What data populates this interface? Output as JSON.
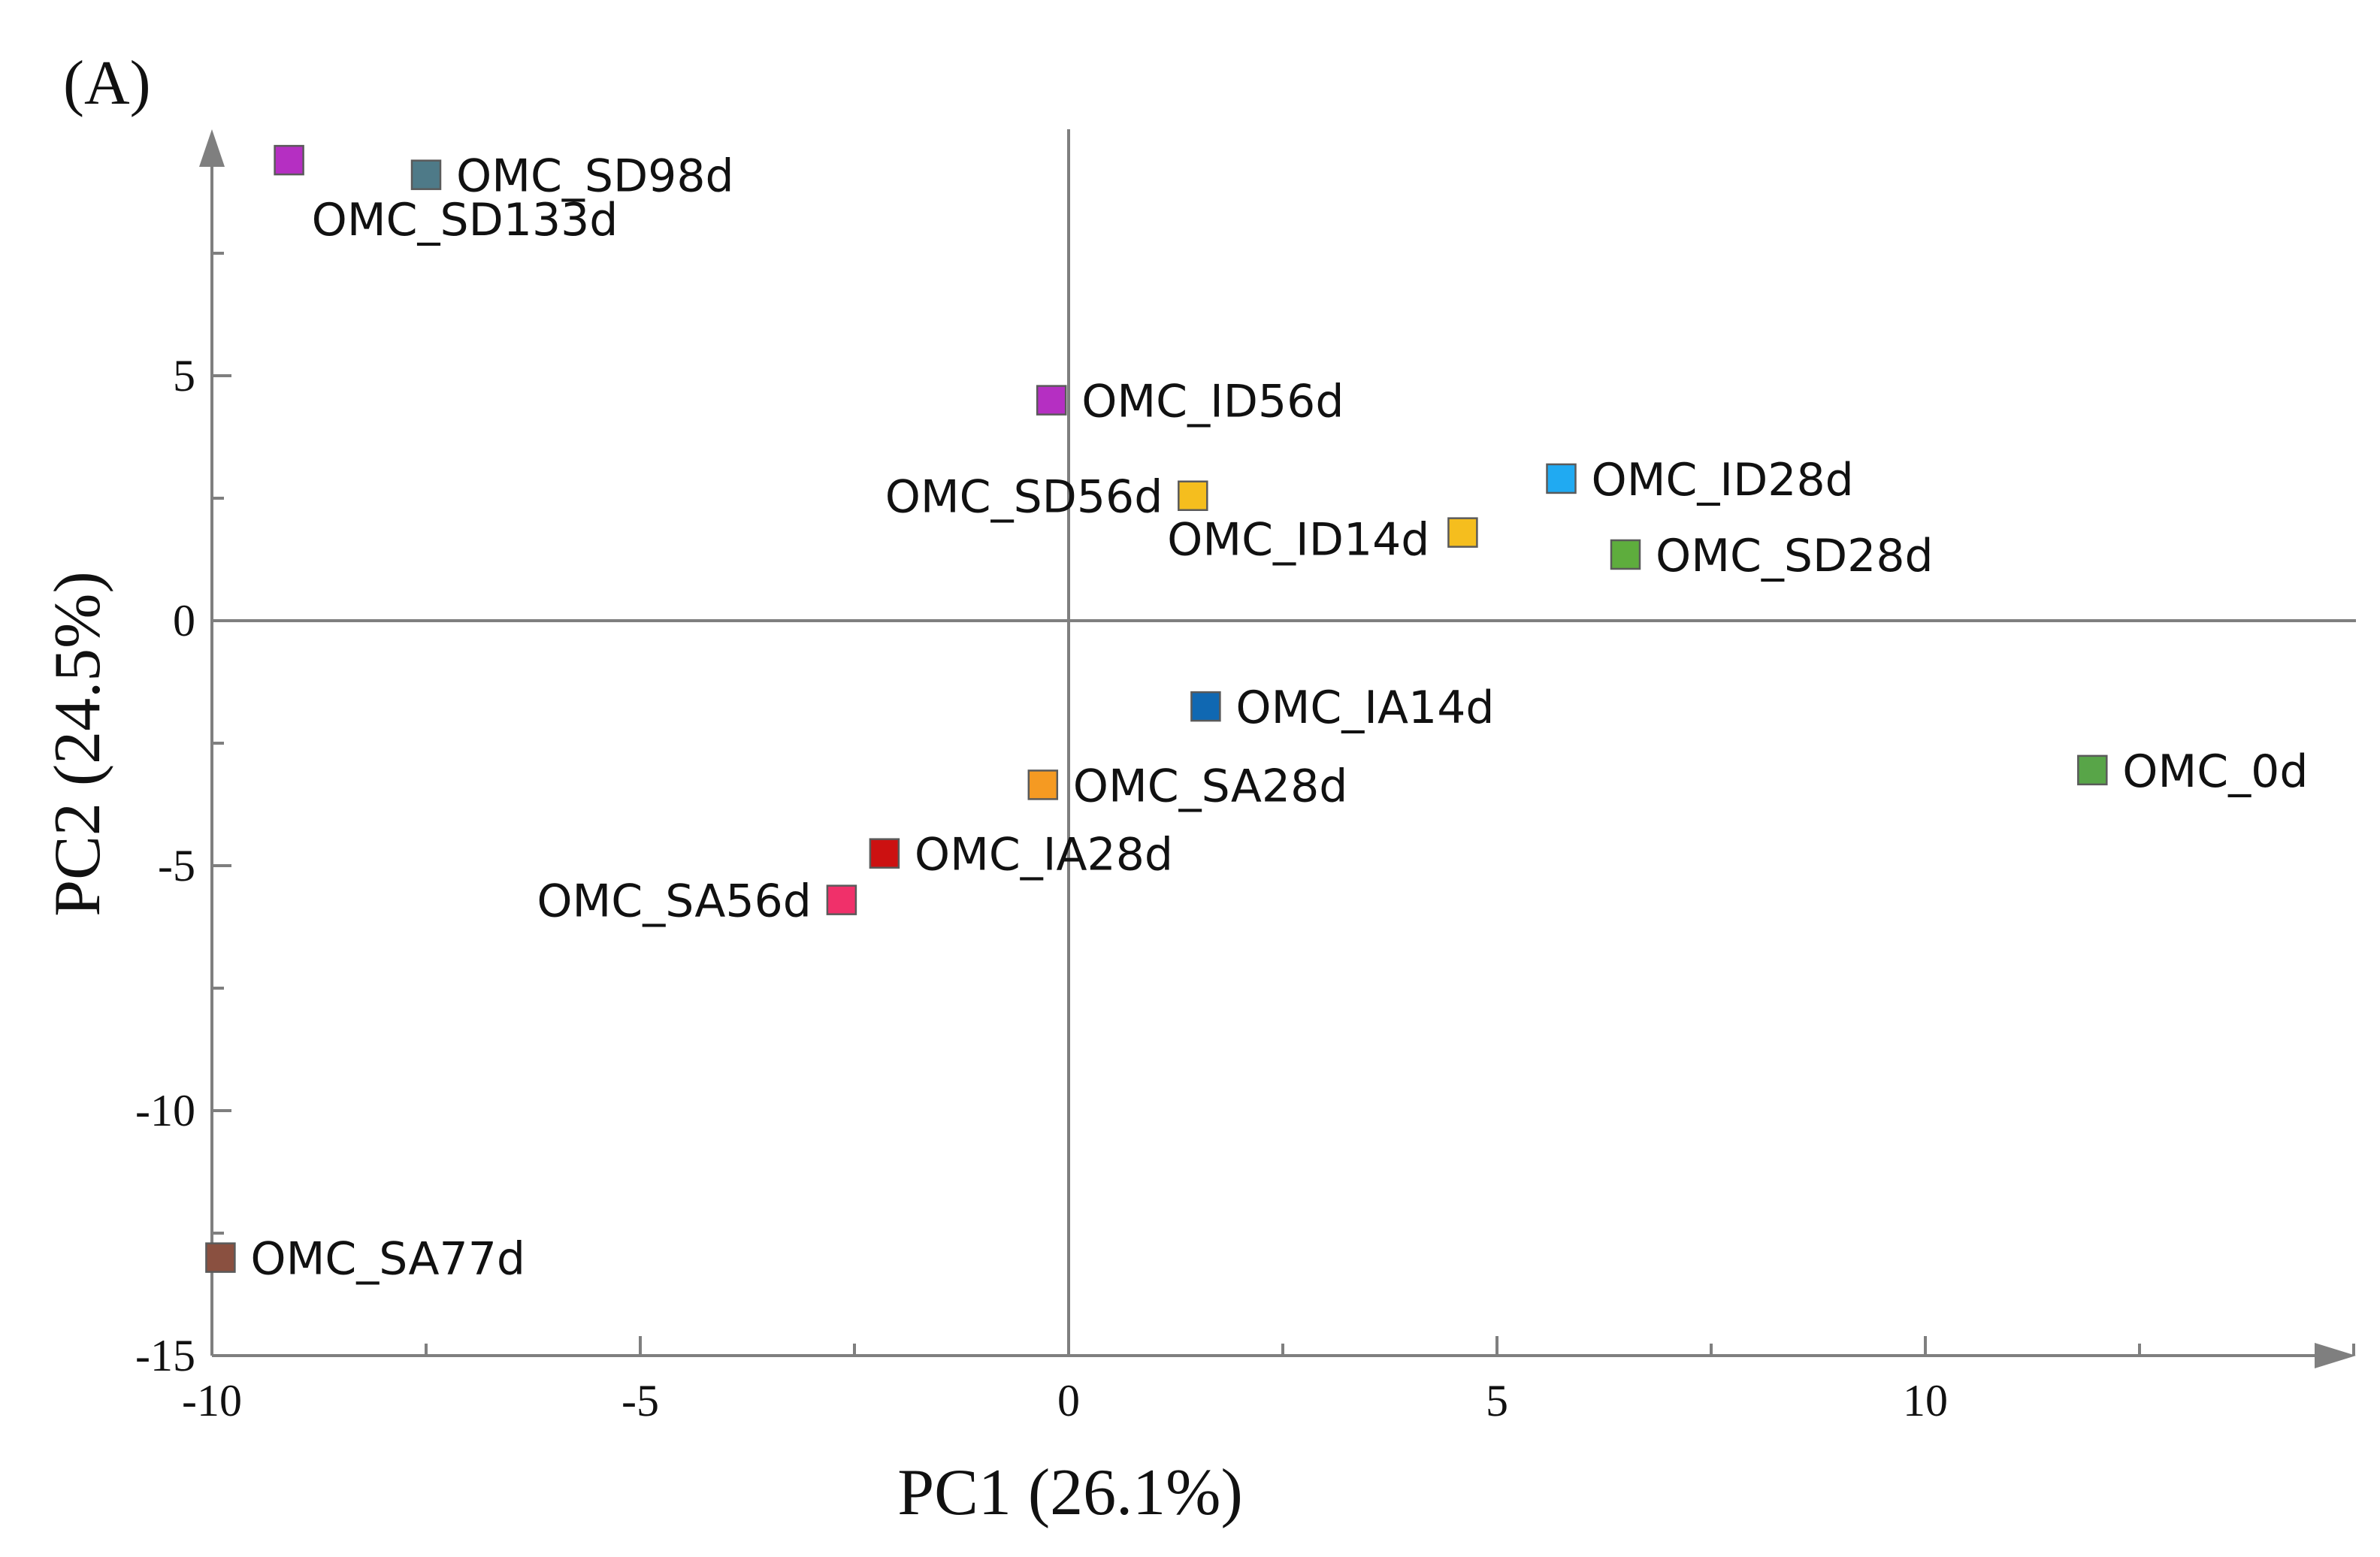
{
  "panel_label": "(A)",
  "chart_data": {
    "type": "scatter",
    "title": "",
    "xlabel": "PC1 (26.1%)",
    "ylabel": "PC2 (24.5%)",
    "xlim": [
      -10,
      15
    ],
    "ylim": [
      -15,
      9.8
    ],
    "x_ticks": [
      -10,
      -5,
      0,
      5,
      10
    ],
    "x_tick_labels": [
      "-10",
      "-5",
      "0",
      "5",
      "10"
    ],
    "x_minor_step": 2.5,
    "y_ticks": [
      -15,
      -10,
      -5,
      0,
      5
    ],
    "y_tick_labels": [
      "-15",
      "-10",
      "-5",
      "0",
      "5"
    ],
    "y_minor_step": 2.5,
    "grid": false,
    "reference_lines": {
      "x": 0,
      "y": 0
    },
    "points": [
      {
        "label": "OMC_SD133d",
        "x": -9.1,
        "y": 9.4,
        "color": "#b52fc2",
        "label_side": "below"
      },
      {
        "label": "OMC_SD98d",
        "x": -7.5,
        "y": 9.1,
        "color": "#4e7a88",
        "label_side": "right"
      },
      {
        "label": "OMC_ID56d",
        "x": -0.2,
        "y": 4.5,
        "color": "#b52fc2",
        "label_side": "right"
      },
      {
        "label": "OMC_SD56d",
        "x": 1.45,
        "y": 2.55,
        "color": "#f5be1e",
        "label_side": "left"
      },
      {
        "label": "OMC_ID14d",
        "x": 4.6,
        "y": 1.8,
        "color": "#f5be1e",
        "label_side": "left-below"
      },
      {
        "label": "OMC_ID28d",
        "x": 5.75,
        "y": 2.9,
        "color": "#20aaf2",
        "label_side": "right"
      },
      {
        "label": "OMC_SD28d",
        "x": 6.5,
        "y": 1.35,
        "color": "#5ead3d",
        "label_side": "right"
      },
      {
        "label": "OMC_IA14d",
        "x": 1.6,
        "y": -1.75,
        "color": "#1068b2",
        "label_side": "right"
      },
      {
        "label": "OMC_SA28d",
        "x": -0.3,
        "y": -3.35,
        "color": "#f59a22",
        "label_side": "right"
      },
      {
        "label": "OMC_IA28d",
        "x": -2.15,
        "y": -4.75,
        "color": "#cc1111",
        "label_side": "right"
      },
      {
        "label": "OMC_SA56d",
        "x": -2.65,
        "y": -5.7,
        "color": "#f0306a",
        "label_side": "left"
      },
      {
        "label": "OMC_0d",
        "x": 11.95,
        "y": -3.05,
        "color": "#58a548",
        "label_side": "right"
      },
      {
        "label": "OMC_SA77d",
        "x": -9.9,
        "y": -13.0,
        "color": "#8a5040",
        "label_side": "right"
      }
    ]
  }
}
